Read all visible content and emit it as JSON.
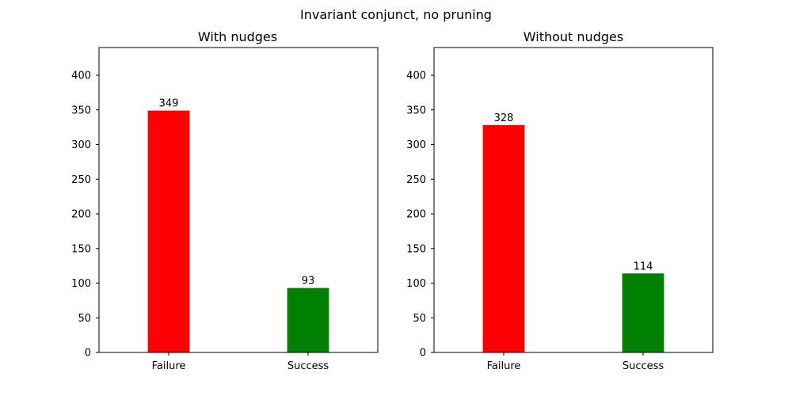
{
  "figure": {
    "suptitle": "Invariant conjunct, no pruning"
  },
  "chart_data": [
    {
      "type": "bar",
      "title": "With nudges",
      "categories": [
        "Failure",
        "Success"
      ],
      "values": [
        349,
        93
      ],
      "colors": [
        "#ff0000",
        "#008000"
      ],
      "xlabel": "",
      "ylabel": "",
      "ylim": [
        0,
        440
      ],
      "yticks": [
        0,
        50,
        100,
        150,
        200,
        250,
        300,
        350,
        400
      ],
      "data_labels": [
        "349",
        "93"
      ],
      "grid": false,
      "legend": false
    },
    {
      "type": "bar",
      "title": "Without nudges",
      "categories": [
        "Failure",
        "Success"
      ],
      "values": [
        328,
        114
      ],
      "colors": [
        "#ff0000",
        "#008000"
      ],
      "xlabel": "",
      "ylabel": "",
      "ylim": [
        0,
        440
      ],
      "yticks": [
        0,
        50,
        100,
        150,
        200,
        250,
        300,
        350,
        400
      ],
      "data_labels": [
        "328",
        "114"
      ],
      "grid": false,
      "legend": false
    }
  ]
}
